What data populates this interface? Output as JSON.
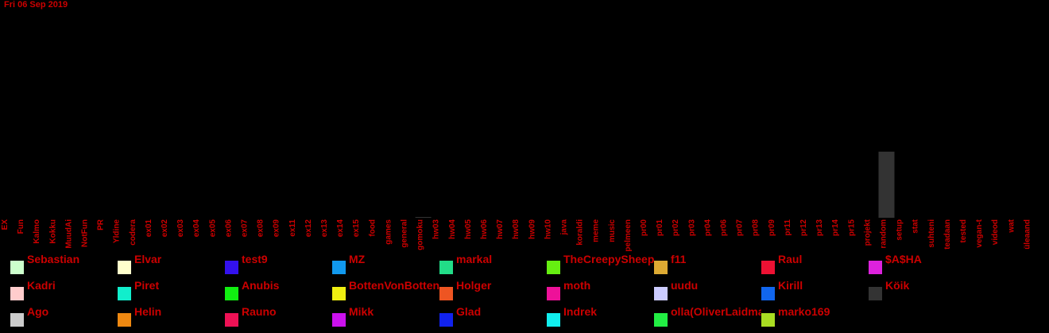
{
  "chart_data": {
    "type": "bar",
    "date_label": "Fri 06 Sep 2019",
    "categories": [
      "EX",
      "Fun",
      "Kalmo",
      "Kokku",
      "MuudAi",
      "NotFun",
      "PR",
      "Yldine",
      "codera",
      "ex01",
      "ex02",
      "ex03",
      "ex04",
      "ex05",
      "ex06",
      "ex07",
      "ex08",
      "ex09",
      "ex11",
      "ex12",
      "ex13",
      "ex14",
      "ex15",
      "food",
      "games",
      "general",
      "gomoku",
      "hw03",
      "hw04",
      "hw05",
      "hw06",
      "hw07",
      "hw08",
      "hw09",
      "hw10",
      "java",
      "koraldi",
      "meme",
      "music",
      "pelmeen",
      "pr00",
      "pr01",
      "pr02",
      "pr03",
      "pr04",
      "pr06",
      "pr07",
      "pr08",
      "pr09",
      "pr11",
      "pr12",
      "pr13",
      "pr14",
      "pr15",
      "projekt",
      "random",
      "setup",
      "stat",
      "suhteni",
      "teadaan",
      "tested",
      "vegan-t",
      "videod",
      "wat",
      "üleaand"
    ],
    "series": [
      {
        "name": "Köik",
        "color": "#333333",
        "values": [
          0,
          0,
          0,
          0,
          0,
          0,
          0,
          0,
          0,
          0,
          0,
          0,
          0,
          0,
          0,
          0,
          0,
          0,
          0,
          0,
          0,
          0,
          0,
          0,
          0,
          0,
          0.4,
          0,
          0,
          0,
          0,
          0,
          0,
          0,
          0,
          0,
          0,
          0,
          0,
          0,
          0,
          0,
          0,
          0,
          0,
          0,
          0,
          0,
          0,
          0,
          0,
          0,
          0,
          0,
          0,
          32,
          0,
          0,
          0,
          0,
          0,
          0,
          0,
          0,
          0
        ]
      }
    ],
    "ylim": [
      0,
      100
    ],
    "legend_placement": "bottom"
  },
  "legend": [
    {
      "name": "Sebastian",
      "color": "#ccffcc"
    },
    {
      "name": "Elvar",
      "color": "#ffffcc"
    },
    {
      "name": "test9",
      "color": "#3311ee"
    },
    {
      "name": "MZ",
      "color": "#1199ee"
    },
    {
      "name": "markal",
      "color": "#22dd88"
    },
    {
      "name": "TheCreepySheep",
      "color": "#66ee11"
    },
    {
      "name": "f11",
      "color": "#ddaa33"
    },
    {
      "name": "Raul",
      "color": "#ee1133"
    },
    {
      "name": "$A$HA",
      "color": "#dd22dd"
    },
    {
      "name": "Kadri",
      "color": "#ffcccc"
    },
    {
      "name": "Piret",
      "color": "#11eecc"
    },
    {
      "name": "Anubis",
      "color": "#11ee11"
    },
    {
      "name": "BottenVonBotten",
      "color": "#eeee11"
    },
    {
      "name": "Holger",
      "color": "#ee5522"
    },
    {
      "name": "moth",
      "color": "#ee1199"
    },
    {
      "name": "uudu",
      "color": "#ccccff"
    },
    {
      "name": "Kirill",
      "color": "#1166ee"
    },
    {
      "name": "Köik",
      "color": "#333333"
    },
    {
      "name": "Ago",
      "color": "#cccccc"
    },
    {
      "name": "Helin",
      "color": "#ee8811"
    },
    {
      "name": "Rauno",
      "color": "#ee1155"
    },
    {
      "name": "Mikk",
      "color": "#cc11ee"
    },
    {
      "name": "Glad",
      "color": "#1122ee"
    },
    {
      "name": "Indrek",
      "color": "#11eeee"
    },
    {
      "name": "olla(OliverLaidma)",
      "color": "#22ee44"
    },
    {
      "name": "marko169",
      "color": "#aadd22"
    }
  ]
}
